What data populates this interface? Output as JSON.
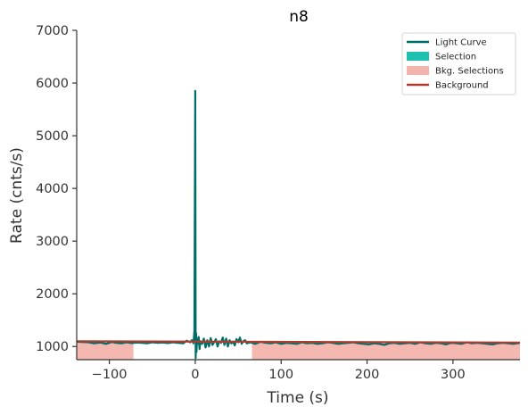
{
  "chart_data": {
    "type": "line",
    "title": "n8",
    "xlabel": "Time (s)",
    "ylabel": "Rate (cnts/s)",
    "xlim": [
      -138,
      378
    ],
    "ylim": [
      750,
      7000
    ],
    "xticks": [
      -100,
      0,
      100,
      200,
      300
    ],
    "xtick_labels": [
      "−100",
      "0",
      "100",
      "200",
      "300"
    ],
    "yticks": [
      1000,
      2000,
      3000,
      4000,
      5000,
      6000,
      7000
    ],
    "ytick_labels": [
      "1000",
      "2000",
      "3000",
      "4000",
      "5000",
      "6000",
      "7000"
    ],
    "legend": {
      "placement": "top-right",
      "entries": [
        {
          "label": "Light Curve",
          "kind": "line",
          "color": "#006e68"
        },
        {
          "label": "Selection",
          "kind": "patch",
          "color": "#1ec0b0"
        },
        {
          "label": "Bkg. Selections",
          "kind": "patch",
          "color": "#f3b4ad"
        },
        {
          "label": "Background",
          "kind": "line",
          "color": "#b33a2c"
        }
      ]
    },
    "bkg_selections": [
      [
        -138,
        -72
      ],
      [
        66,
        378
      ]
    ],
    "background": {
      "x": [
        -138,
        378
      ],
      "y": [
        1100,
        1075
      ]
    },
    "light_curve": {
      "color": "#006e68",
      "x": [
        -138,
        -124,
        -118,
        -110,
        -104,
        -97,
        -92,
        -86,
        -80,
        -74,
        -68,
        -62,
        -56,
        -50,
        -44,
        -38,
        -32,
        -26,
        -20,
        -14,
        -10,
        -6,
        -4,
        -2,
        -1,
        0,
        0.5,
        1,
        1.5,
        2,
        3,
        4,
        5,
        6,
        8,
        10,
        12,
        14,
        16,
        18,
        20,
        22,
        24,
        26,
        28,
        30,
        32,
        34,
        36,
        38,
        40,
        42,
        44,
        46,
        48,
        50,
        52,
        54,
        56,
        58,
        60,
        64,
        70,
        76,
        82,
        88,
        94,
        100,
        106,
        112,
        118,
        124,
        130,
        136,
        142,
        148,
        154,
        160,
        166,
        172,
        178,
        184,
        190,
        196,
        202,
        208,
        214,
        220,
        226,
        232,
        238,
        244,
        250,
        256,
        262,
        268,
        274,
        280,
        286,
        292,
        298,
        304,
        310,
        316,
        322,
        328,
        334,
        340,
        346,
        352,
        358,
        364,
        370,
        378
      ],
      "y": [
        1090,
        1080,
        1060,
        1075,
        1050,
        1085,
        1070,
        1060,
        1080,
        1065,
        1075,
        1070,
        1060,
        1080,
        1070,
        1075,
        1065,
        1080,
        1070,
        1060,
        1110,
        1080,
        1120,
        1060,
        1300,
        5850,
        780,
        1250,
        900,
        1150,
        1050,
        1180,
        950,
        1100,
        1050,
        1150,
        980,
        1120,
        1000,
        1160,
        1030,
        1080,
        1140,
        1000,
        1100,
        1070,
        1170,
        1030,
        1150,
        1000,
        1120,
        1060,
        1090,
        1020,
        1140,
        1080,
        1170,
        1050,
        1100,
        1120,
        1060,
        1080,
        1050,
        1090,
        1070,
        1060,
        1080,
        1050,
        1070,
        1060,
        1050,
        1080,
        1060,
        1070,
        1050,
        1060,
        1080,
        1070,
        1050,
        1060,
        1070,
        1080,
        1060,
        1050,
        1040,
        1060,
        1050,
        1030,
        1060,
        1070,
        1050,
        1060,
        1070,
        1050,
        1080,
        1060,
        1050,
        1070,
        1060,
        1040,
        1070,
        1060,
        1050,
        1080,
        1060,
        1070,
        1060,
        1050,
        1040,
        1060,
        1070,
        1060,
        1050,
        1070
      ]
    },
    "selection": {
      "x": [
        -1,
        1
      ],
      "color": "#1ec0b0"
    },
    "grid": false
  }
}
